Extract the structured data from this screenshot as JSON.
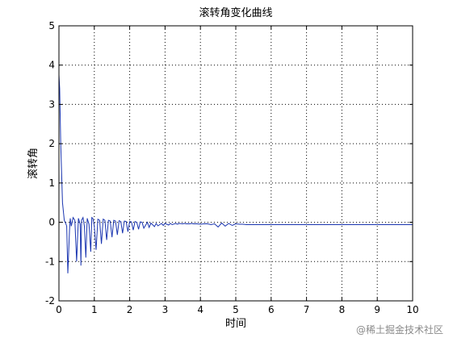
{
  "chart_data": {
    "type": "line",
    "title": "滚转角变化曲线",
    "xlabel": "时间",
    "ylabel": "滚转角",
    "xlim": [
      0,
      10
    ],
    "ylim": [
      -2,
      5
    ],
    "x_ticks": [
      "0",
      "1",
      "2",
      "3",
      "4",
      "5",
      "6",
      "7",
      "8",
      "9",
      "10"
    ],
    "y_ticks": [
      "-2",
      "-1",
      "0",
      "1",
      "2",
      "3",
      "4",
      "5"
    ],
    "grid": true,
    "series": [
      {
        "color": "#1a35b0",
        "x": [
          0,
          0.02,
          0.05,
          0.1,
          0.15,
          0.2,
          0.22,
          0.25,
          0.3,
          0.32,
          0.35,
          0.4,
          0.45,
          0.5,
          0.55,
          0.6,
          0.62,
          0.64,
          0.68,
          0.72,
          0.76,
          0.8,
          0.85,
          0.9,
          0.93,
          0.96,
          1.0,
          1.05,
          1.1,
          1.15,
          1.2,
          1.25,
          1.3,
          1.35,
          1.4,
          1.45,
          1.5,
          1.55,
          1.6,
          1.65,
          1.7,
          1.75,
          1.8,
          1.85,
          1.9,
          1.95,
          2.0,
          2.05,
          2.1,
          2.15,
          2.2,
          2.25,
          2.3,
          2.35,
          2.4,
          2.5,
          2.55,
          2.6,
          2.7,
          2.75,
          2.8,
          2.9,
          2.95,
          3.0,
          3.1,
          3.15,
          3.2,
          3.3,
          3.35,
          3.4,
          3.5,
          3.55,
          3.6,
          3.7,
          3.75,
          3.8,
          3.9,
          4.0,
          4.1,
          4.2,
          4.3,
          4.4,
          4.5,
          4.6,
          4.7,
          4.8,
          4.9,
          5.0,
          5.1,
          5.2,
          5.3,
          6.0,
          7.0,
          8.0,
          9.0,
          10.0
        ],
        "y": [
          3.75,
          3.4,
          2.0,
          0.5,
          0.05,
          -0.05,
          -0.1,
          -1.3,
          -0.2,
          0.1,
          -0.1,
          0.12,
          0.05,
          -1.0,
          0.1,
          -0.05,
          -1.1,
          0.05,
          0.12,
          -0.1,
          -0.9,
          0.1,
          -0.05,
          -0.75,
          0.12,
          0.1,
          -0.1,
          -0.7,
          0.08,
          0.05,
          -0.55,
          0.08,
          0.05,
          -0.45,
          0.05,
          0.03,
          -0.38,
          0.05,
          0.03,
          -0.32,
          0.04,
          0.02,
          -0.28,
          0.03,
          0.02,
          -0.24,
          0.02,
          0.01,
          -0.2,
          0.02,
          0.0,
          -0.18,
          0.01,
          0.0,
          -0.15,
          0.0,
          -0.13,
          -0.02,
          -0.11,
          -0.03,
          -0.09,
          -0.03,
          -0.08,
          -0.03,
          -0.07,
          -0.03,
          -0.06,
          -0.03,
          -0.05,
          -0.03,
          -0.04,
          -0.03,
          -0.04,
          -0.04,
          -0.03,
          -0.04,
          -0.04,
          -0.05,
          -0.04,
          -0.04,
          -0.06,
          -0.04,
          -0.12,
          -0.02,
          -0.1,
          -0.03,
          -0.08,
          -0.04,
          -0.05,
          -0.05,
          -0.06,
          -0.06,
          -0.06,
          -0.06,
          -0.06,
          -0.06
        ]
      }
    ]
  },
  "watermark": "@稀土掘金技术社区"
}
